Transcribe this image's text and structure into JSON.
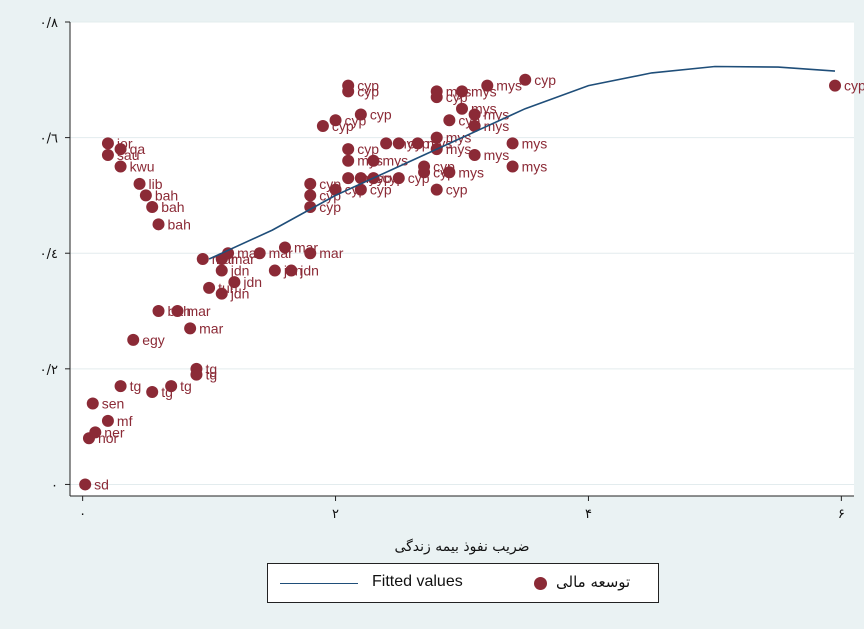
{
  "chart_data": {
    "type": "scatter",
    "xlabel": "ضریب نفوذ بیمه زندگی",
    "ylabel": "",
    "xlim": [
      -0.1,
      6.1
    ],
    "ylim": [
      -0.02,
      0.8
    ],
    "x_ticks": [
      {
        "value": 0,
        "label": "۰"
      },
      {
        "value": 2,
        "label": "۲"
      },
      {
        "value": 4,
        "label": "۴"
      },
      {
        "value": 6,
        "label": "۶"
      }
    ],
    "y_ticks": [
      {
        "value": 0,
        "label": "۰"
      },
      {
        "value": 0.2,
        "label": "۰/۲"
      },
      {
        "value": 0.4,
        "label": "۰/٤"
      },
      {
        "value": 0.6,
        "label": "۰/٦"
      },
      {
        "value": 0.8,
        "label": "۰/۸"
      }
    ],
    "grid": true,
    "legend_position": "bottom",
    "colors": {
      "points": "#8b2a36",
      "fitted_line": "#1f4e79"
    },
    "series": [
      {
        "name": "توسعه مالی",
        "kind": "scatter",
        "points": [
          {
            "x": 0.02,
            "y": 0.0,
            "label": "sd"
          },
          {
            "x": 0.05,
            "y": 0.08,
            "label": "nor"
          },
          {
            "x": 0.1,
            "y": 0.09,
            "label": "ner"
          },
          {
            "x": 0.2,
            "y": 0.11,
            "label": "mf"
          },
          {
            "x": 0.08,
            "y": 0.14,
            "label": "sen"
          },
          {
            "x": 0.3,
            "y": 0.17,
            "label": "tg"
          },
          {
            "x": 0.55,
            "y": 0.16,
            "label": "tg"
          },
          {
            "x": 0.7,
            "y": 0.17,
            "label": "tg"
          },
          {
            "x": 0.9,
            "y": 0.2,
            "label": "tg"
          },
          {
            "x": 0.9,
            "y": 0.19,
            "label": "tg"
          },
          {
            "x": 0.85,
            "y": 0.27,
            "label": "mar"
          },
          {
            "x": 0.75,
            "y": 0.3,
            "label": "mar"
          },
          {
            "x": 0.4,
            "y": 0.25,
            "label": "egy"
          },
          {
            "x": 0.6,
            "y": 0.3,
            "label": "bah"
          },
          {
            "x": 1.0,
            "y": 0.34,
            "label": "tun"
          },
          {
            "x": 1.1,
            "y": 0.33,
            "label": "jdn"
          },
          {
            "x": 1.2,
            "y": 0.35,
            "label": "jdn"
          },
          {
            "x": 1.1,
            "y": 0.37,
            "label": "jdn"
          },
          {
            "x": 0.95,
            "y": 0.39,
            "label": "mar"
          },
          {
            "x": 1.1,
            "y": 0.39,
            "label": "mar"
          },
          {
            "x": 1.15,
            "y": 0.4,
            "label": "mar"
          },
          {
            "x": 1.4,
            "y": 0.4,
            "label": "mar"
          },
          {
            "x": 1.6,
            "y": 0.41,
            "label": "mar"
          },
          {
            "x": 1.8,
            "y": 0.4,
            "label": "mar"
          },
          {
            "x": 1.52,
            "y": 0.37,
            "label": "jdn"
          },
          {
            "x": 1.65,
            "y": 0.37,
            "label": "jdn"
          },
          {
            "x": 0.6,
            "y": 0.45,
            "label": "bah"
          },
          {
            "x": 0.55,
            "y": 0.48,
            "label": "bah"
          },
          {
            "x": 0.5,
            "y": 0.5,
            "label": "bah"
          },
          {
            "x": 0.45,
            "y": 0.52,
            "label": "lib"
          },
          {
            "x": 0.3,
            "y": 0.55,
            "label": "kwu"
          },
          {
            "x": 0.2,
            "y": 0.57,
            "label": "sau"
          },
          {
            "x": 0.3,
            "y": 0.58,
            "label": "qa"
          },
          {
            "x": 0.2,
            "y": 0.59,
            "label": "jor"
          },
          {
            "x": 1.8,
            "y": 0.48,
            "label": "cyp"
          },
          {
            "x": 1.8,
            "y": 0.5,
            "label": "cyp"
          },
          {
            "x": 1.8,
            "y": 0.52,
            "label": "cyp"
          },
          {
            "x": 2.0,
            "y": 0.51,
            "label": "cyp"
          },
          {
            "x": 2.1,
            "y": 0.53,
            "label": "mys"
          },
          {
            "x": 2.2,
            "y": 0.51,
            "label": "cyp"
          },
          {
            "x": 2.2,
            "y": 0.53,
            "label": "cyp"
          },
          {
            "x": 2.3,
            "y": 0.53,
            "label": "cyp"
          },
          {
            "x": 2.5,
            "y": 0.53,
            "label": "cyp"
          },
          {
            "x": 2.7,
            "y": 0.54,
            "label": "cyp"
          },
          {
            "x": 2.1,
            "y": 0.56,
            "label": "mys"
          },
          {
            "x": 2.3,
            "y": 0.56,
            "label": "mys"
          },
          {
            "x": 2.1,
            "y": 0.58,
            "label": "cyp"
          },
          {
            "x": 2.8,
            "y": 0.51,
            "label": "cyp"
          },
          {
            "x": 2.7,
            "y": 0.55,
            "label": "cyp"
          },
          {
            "x": 2.9,
            "y": 0.54,
            "label": "mys"
          },
          {
            "x": 2.4,
            "y": 0.59,
            "label": "mys"
          },
          {
            "x": 2.5,
            "y": 0.59,
            "label": "cyp"
          },
          {
            "x": 2.65,
            "y": 0.59,
            "label": "mys"
          },
          {
            "x": 2.8,
            "y": 0.6,
            "label": "mys"
          },
          {
            "x": 2.8,
            "y": 0.58,
            "label": "mys"
          },
          {
            "x": 3.1,
            "y": 0.57,
            "label": "mys"
          },
          {
            "x": 3.4,
            "y": 0.55,
            "label": "mys"
          },
          {
            "x": 3.4,
            "y": 0.59,
            "label": "mys"
          },
          {
            "x": 3.1,
            "y": 0.62,
            "label": "mys"
          },
          {
            "x": 3.1,
            "y": 0.64,
            "label": "mys"
          },
          {
            "x": 2.9,
            "y": 0.63,
            "label": "cyp"
          },
          {
            "x": 3.0,
            "y": 0.65,
            "label": "mys"
          },
          {
            "x": 2.8,
            "y": 0.67,
            "label": "cyp"
          },
          {
            "x": 2.8,
            "y": 0.68,
            "label": "mys"
          },
          {
            "x": 3.0,
            "y": 0.68,
            "label": "mys"
          },
          {
            "x": 3.2,
            "y": 0.69,
            "label": "mys"
          },
          {
            "x": 3.5,
            "y": 0.7,
            "label": "cyp"
          },
          {
            "x": 2.2,
            "y": 0.64,
            "label": "cyp"
          },
          {
            "x": 2.1,
            "y": 0.68,
            "label": "cyp"
          },
          {
            "x": 2.1,
            "y": 0.69,
            "label": "cyp"
          },
          {
            "x": 1.9,
            "y": 0.62,
            "label": "cyp"
          },
          {
            "x": 2.0,
            "y": 0.63,
            "label": "cyp"
          },
          {
            "x": 5.95,
            "y": 0.69,
            "label": "cyp"
          }
        ]
      },
      {
        "name": "Fitted values",
        "kind": "line",
        "points": [
          {
            "x": 1.0,
            "y": 0.39
          },
          {
            "x": 1.5,
            "y": 0.44
          },
          {
            "x": 2.0,
            "y": 0.5
          },
          {
            "x": 2.5,
            "y": 0.55
          },
          {
            "x": 3.0,
            "y": 0.6
          },
          {
            "x": 3.5,
            "y": 0.65
          },
          {
            "x": 4.0,
            "y": 0.69
          },
          {
            "x": 4.5,
            "y": 0.712
          },
          {
            "x": 5.0,
            "y": 0.723
          },
          {
            "x": 5.5,
            "y": 0.722
          },
          {
            "x": 5.95,
            "y": 0.715
          }
        ]
      }
    ]
  },
  "legend": {
    "line_label": "Fitted values",
    "points_label": "توسعه مالی"
  }
}
